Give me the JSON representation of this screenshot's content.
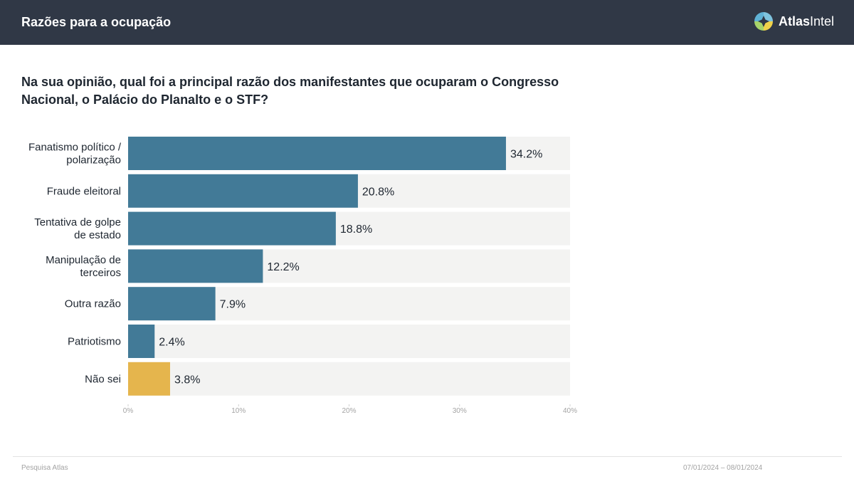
{
  "header": {
    "title": "Razões para a ocupação",
    "brand": {
      "bold": "Atlas",
      "light": "Intel"
    }
  },
  "question": "Na sua opinião, qual foi a principal razão dos manifestantes que ocuparam o Congresso Nacional, o Palácio do Planalto e o STF?",
  "footer": {
    "source": "Pesquisa Atlas",
    "dates": "07/01/2024 – 08/01/2024"
  },
  "colors": {
    "header_bg": "#303846",
    "bar_primary": "#427a97",
    "bar_dont_know": "#e5b54d",
    "track": "#f3f3f2"
  },
  "chart_data": {
    "type": "bar",
    "orientation": "horizontal",
    "title": "Na sua opinião, qual foi a principal razão dos manifestantes que ocuparam o Congresso Nacional, o Palácio do Planalto e o STF?",
    "categories": [
      [
        "Fanatismo político /",
        "polarização"
      ],
      [
        "Fraude eleitoral"
      ],
      [
        "Tentativa de golpe",
        "de estado"
      ],
      [
        "Manipulação de",
        "terceiros"
      ],
      [
        "Outra razão"
      ],
      [
        "Patriotismo"
      ],
      [
        "Não sei"
      ]
    ],
    "values": [
      34.2,
      20.8,
      18.8,
      12.2,
      7.9,
      2.4,
      3.8
    ],
    "value_labels": [
      "34.2%",
      "20.8%",
      "18.8%",
      "12.2%",
      "7.9%",
      "2.4%",
      "3.8%"
    ],
    "bar_colors": [
      "#427a97",
      "#427a97",
      "#427a97",
      "#427a97",
      "#427a97",
      "#427a97",
      "#e5b54d"
    ],
    "xlim": [
      0,
      40
    ],
    "x_ticks": [
      0,
      10,
      20,
      30,
      40
    ],
    "x_tick_labels": [
      "0%",
      "10%",
      "20%",
      "30%",
      "40%"
    ],
    "xlabel": "",
    "ylabel": "",
    "grid": false,
    "legend": "none"
  }
}
